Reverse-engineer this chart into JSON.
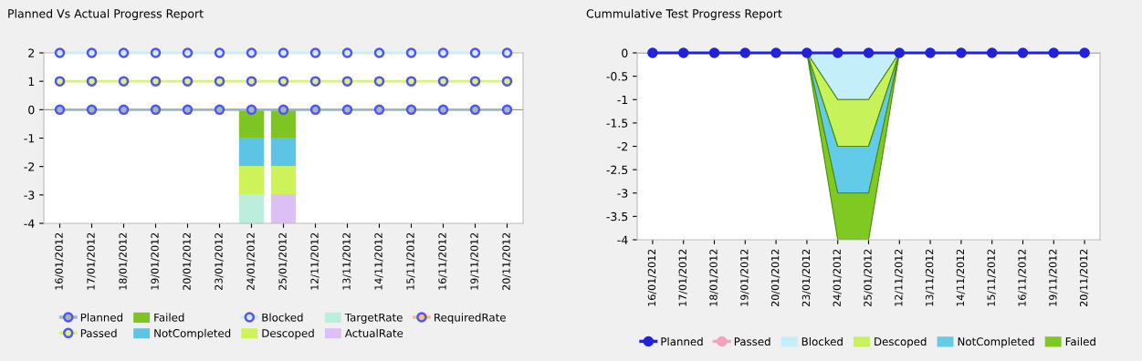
{
  "chart_data": [
    {
      "type": "bar",
      "title": "Planned Vs Actual Progress Report",
      "stacked": true,
      "legend": "bottom",
      "marker": "circle",
      "categories": [
        "16/01/2012",
        "17/01/2012",
        "18/01/2012",
        "19/01/2012",
        "20/01/2012",
        "23/01/2012",
        "24/01/2012",
        "25/01/2012",
        "12/11/2012",
        "13/11/2012",
        "14/11/2012",
        "15/11/2012",
        "16/11/2012",
        "19/11/2012",
        "20/11/2012"
      ],
      "ylim": [
        -4,
        2
      ],
      "yticks": [
        -4,
        -3,
        -2,
        -1,
        0,
        1,
        2
      ],
      "series": [
        {
          "name": "Planned",
          "type": "line",
          "color": "#9ab8c8",
          "values": [
            0,
            0,
            0,
            0,
            0,
            0,
            0,
            0,
            0,
            0,
            0,
            0,
            0,
            0,
            0
          ]
        },
        {
          "name": "Passed",
          "type": "line",
          "color": "#d8f27a",
          "values": [
            1,
            1,
            1,
            1,
            1,
            1,
            1,
            1,
            1,
            1,
            1,
            1,
            1,
            1,
            1
          ]
        },
        {
          "name": "Failed",
          "type": "bar",
          "color": "#7ec423",
          "values": [
            null,
            null,
            null,
            null,
            null,
            null,
            -1,
            -1,
            null,
            null,
            null,
            null,
            null,
            null,
            null
          ]
        },
        {
          "name": "NotCompleted",
          "type": "bar",
          "color": "#5ec4e6",
          "values": [
            null,
            null,
            null,
            null,
            null,
            null,
            -1,
            -1,
            null,
            null,
            null,
            null,
            null,
            null,
            null
          ]
        },
        {
          "name": "Blocked",
          "type": "line",
          "color": "#cdeef8",
          "values": [
            2,
            2,
            2,
            2,
            2,
            2,
            2,
            2,
            2,
            2,
            2,
            2,
            2,
            2,
            2
          ]
        },
        {
          "name": "Descoped",
          "type": "bar",
          "color": "#cdf25a",
          "values": [
            null,
            null,
            null,
            null,
            null,
            null,
            -1,
            -1,
            null,
            null,
            null,
            null,
            null,
            null,
            null
          ]
        },
        {
          "name": "TargetRate",
          "type": "bar",
          "color": "#bdeedd",
          "values": [
            null,
            null,
            null,
            null,
            null,
            null,
            -1,
            null,
            null,
            null,
            null,
            null,
            null,
            null,
            null
          ]
        },
        {
          "name": "ActualRate",
          "type": "bar",
          "color": "#dcc0f5",
          "values": [
            null,
            null,
            null,
            null,
            null,
            null,
            null,
            -1,
            null,
            null,
            null,
            null,
            null,
            null,
            null
          ]
        },
        {
          "name": "RequiredRate",
          "type": "line",
          "color": "#f0c08a",
          "values": [
            null,
            null,
            null,
            null,
            null,
            null,
            null,
            null,
            null,
            null,
            null,
            null,
            null,
            null,
            null
          ]
        }
      ]
    },
    {
      "type": "area",
      "title": "Cummulative Test Progress Report",
      "stacked": true,
      "legend": "bottom",
      "categories": [
        "16/01/2012",
        "17/01/2012",
        "18/01/2012",
        "19/01/2012",
        "20/01/2012",
        "23/01/2012",
        "24/01/2012",
        "25/01/2012",
        "12/11/2012",
        "13/11/2012",
        "14/11/2012",
        "15/11/2012",
        "16/11/2012",
        "19/11/2012",
        "20/11/2012"
      ],
      "ylim": [
        -4,
        0
      ],
      "yticks": [
        -4,
        -3.5,
        -3,
        -2.5,
        -2,
        -1.5,
        -1,
        -0.5,
        0
      ],
      "series": [
        {
          "name": "Planned",
          "type": "line",
          "marker": "circle",
          "color": "#2222dd",
          "values": [
            0,
            0,
            0,
            0,
            0,
            0,
            0,
            0,
            0,
            0,
            0,
            0,
            0,
            0,
            0
          ]
        },
        {
          "name": "Passed",
          "type": "line",
          "marker": "circle",
          "color": "#f7a0c0",
          "values": [
            null,
            null,
            null,
            null,
            null,
            null,
            null,
            null,
            null,
            null,
            null,
            null,
            null,
            null,
            null
          ]
        },
        {
          "name": "Blocked",
          "color": "#c4eef9",
          "values": [
            0,
            0,
            0,
            0,
            0,
            0,
            -1,
            -1,
            0,
            0,
            0,
            0,
            0,
            0,
            0
          ]
        },
        {
          "name": "Descoped",
          "color": "#c8f25a",
          "values": [
            0,
            0,
            0,
            0,
            0,
            0,
            -1,
            -1,
            0,
            0,
            0,
            0,
            0,
            0,
            0
          ]
        },
        {
          "name": "NotCompleted",
          "color": "#62cbe8",
          "values": [
            0,
            0,
            0,
            0,
            0,
            0,
            -1,
            -1,
            0,
            0,
            0,
            0,
            0,
            0,
            0
          ]
        },
        {
          "name": "Failed",
          "color": "#80c822",
          "values": [
            0,
            0,
            0,
            0,
            0,
            0,
            -1,
            -1,
            0,
            0,
            0,
            0,
            0,
            0,
            0
          ]
        }
      ]
    }
  ]
}
